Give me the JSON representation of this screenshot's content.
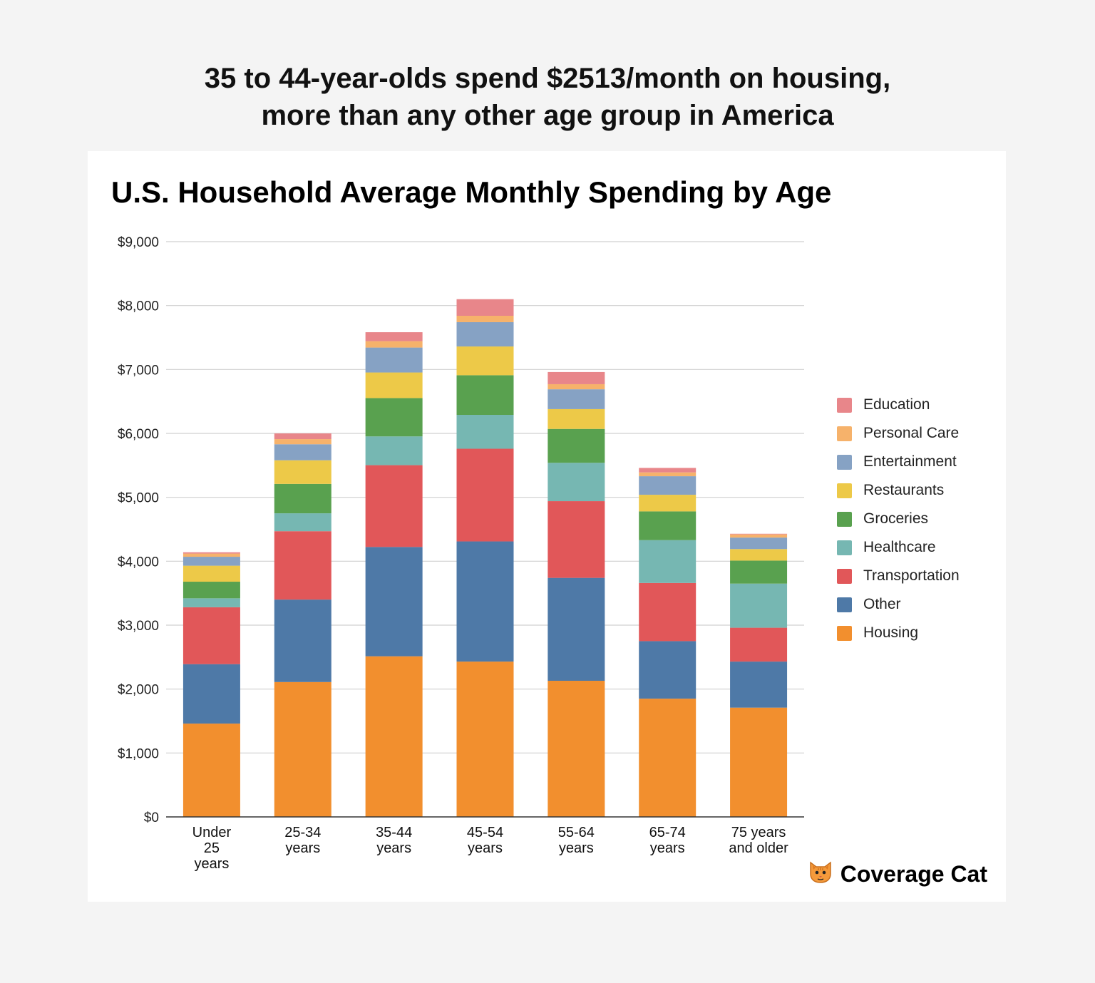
{
  "headline": {
    "line1": "35 to 44-year-olds spend $2513/month on housing,",
    "line2": "more than any other age group in America"
  },
  "brand": {
    "name": "Coverage Cat",
    "logo_icon": "cat-face-icon"
  },
  "chart_data": {
    "type": "bar",
    "stacked": true,
    "title": "U.S. Household Average Monthly Spending by Age",
    "xlabel": "",
    "ylabel": "",
    "ylim": [
      0,
      9000
    ],
    "yticks": [
      "$0",
      "$1,000",
      "$2,000",
      "$3,000",
      "$4,000",
      "$5,000",
      "$6,000",
      "$7,000",
      "$8,000",
      "$9,000"
    ],
    "grid": true,
    "legend_position": "right",
    "categories": [
      [
        "Under",
        "25",
        "years"
      ],
      [
        "25-34",
        "years"
      ],
      [
        "35-44",
        "years"
      ],
      [
        "45-54",
        "years"
      ],
      [
        "55-64",
        "years"
      ],
      [
        "65-74",
        "years"
      ],
      [
        "75 years",
        "and older"
      ]
    ],
    "series": [
      {
        "name": "Housing",
        "color": "#f28f2e",
        "values": [
          1460,
          2110,
          2513,
          2430,
          2130,
          1850,
          1710
        ]
      },
      {
        "name": "Other",
        "color": "#4e79a7",
        "values": [
          930,
          1290,
          1710,
          1880,
          1610,
          900,
          720
        ]
      },
      {
        "name": "Transportation",
        "color": "#e15759",
        "values": [
          890,
          1070,
          1280,
          1450,
          1200,
          910,
          530
        ]
      },
      {
        "name": "Healthcare",
        "color": "#76b7b2",
        "values": [
          140,
          280,
          450,
          530,
          600,
          670,
          690
        ]
      },
      {
        "name": "Groceries",
        "color": "#59a14f",
        "values": [
          260,
          460,
          600,
          620,
          530,
          450,
          360
        ]
      },
      {
        "name": "Restaurants",
        "color": "#edc948",
        "values": [
          250,
          370,
          400,
          450,
          310,
          260,
          180
        ]
      },
      {
        "name": "Entertainment",
        "color": "#86a2c4",
        "values": [
          140,
          250,
          390,
          380,
          310,
          290,
          180
        ]
      },
      {
        "name": "Personal Care",
        "color": "#f6b26b",
        "values": [
          50,
          80,
          100,
          100,
          80,
          60,
          50
        ]
      },
      {
        "name": "Education",
        "color": "#e8868a",
        "values": [
          20,
          90,
          140,
          260,
          190,
          70,
          10
        ]
      }
    ],
    "legend_order": [
      "Education",
      "Personal Care",
      "Entertainment",
      "Restaurants",
      "Groceries",
      "Healthcare",
      "Transportation",
      "Other",
      "Housing"
    ]
  }
}
